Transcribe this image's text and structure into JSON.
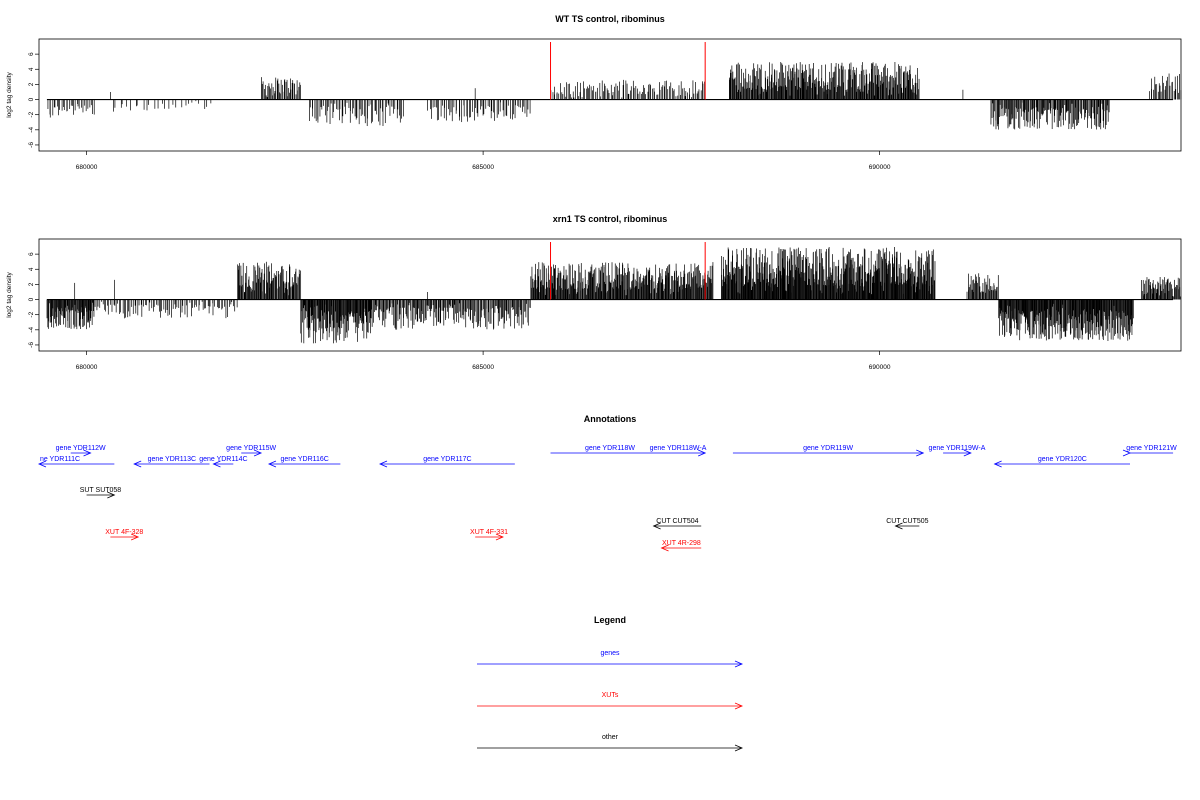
{
  "chart_data": [
    {
      "type": "bar",
      "title": "WT TS control, ribominus",
      "ylabel": "log2 tag density",
      "xlim": [
        679400,
        693800
      ],
      "ylim": [
        -6.8,
        8
      ],
      "yticks": [
        -6,
        -4,
        -2,
        0,
        2,
        4,
        6
      ],
      "xticks": [
        680000,
        685000,
        690000
      ],
      "xtick_labels": [
        "680000",
        "685000",
        "690000"
      ],
      "red_markers": [
        685850,
        687800
      ],
      "segments": [
        {
          "from": 679500,
          "to": 680100,
          "strand": "-",
          "max": 2.6,
          "density": 0.3
        },
        {
          "from": 680300,
          "to": 681600,
          "strand": "-",
          "max": 1.6,
          "density": 0.12
        },
        {
          "from": 682200,
          "to": 682700,
          "strand": "+",
          "max": 3.0,
          "density": 0.5
        },
        {
          "from": 682800,
          "to": 684000,
          "strand": "-",
          "max": 3.6,
          "density": 0.35
        },
        {
          "from": 684300,
          "to": 685600,
          "strand": "-",
          "max": 3.0,
          "density": 0.3
        },
        {
          "from": 685850,
          "to": 687800,
          "strand": "+",
          "max": 2.6,
          "density": 0.35
        },
        {
          "from": 688100,
          "to": 690500,
          "strand": "+",
          "max": 5.0,
          "density": 0.75
        },
        {
          "from": 691400,
          "to": 692900,
          "strand": "-",
          "max": 4.0,
          "density": 0.6
        },
        {
          "from": 693400,
          "to": 693800,
          "strand": "+",
          "max": 3.5,
          "density": 0.4
        }
      ],
      "spikes": [
        {
          "x": 680300,
          "y": 1.0
        },
        {
          "x": 684900,
          "y": 1.5
        },
        {
          "x": 691050,
          "y": 1.3
        }
      ]
    },
    {
      "type": "bar",
      "title": "xrn1 TS control, ribominus",
      "ylabel": "log2 tag density",
      "xlim": [
        679400,
        693800
      ],
      "ylim": [
        -6.8,
        8
      ],
      "yticks": [
        -6,
        -4,
        -2,
        0,
        2,
        4,
        6
      ],
      "xticks": [
        680000,
        685000,
        690000
      ],
      "xtick_labels": [
        "680000",
        "685000",
        "690000"
      ],
      "red_markers": [
        685850,
        687800
      ],
      "segments": [
        {
          "from": 679500,
          "to": 680100,
          "strand": "-",
          "max": 4.0,
          "density": 0.8
        },
        {
          "from": 680100,
          "to": 681900,
          "strand": "-",
          "max": 2.5,
          "density": 0.3
        },
        {
          "from": 681900,
          "to": 682700,
          "strand": "+",
          "max": 5.0,
          "density": 0.7
        },
        {
          "from": 682700,
          "to": 683600,
          "strand": "-",
          "max": 5.8,
          "density": 0.85
        },
        {
          "from": 683600,
          "to": 685600,
          "strand": "-",
          "max": 4.0,
          "density": 0.55
        },
        {
          "from": 685600,
          "to": 687900,
          "strand": "+",
          "max": 5.0,
          "density": 0.8
        },
        {
          "from": 688000,
          "to": 690700,
          "strand": "+",
          "max": 7.0,
          "density": 0.95
        },
        {
          "from": 691100,
          "to": 691500,
          "strand": "+",
          "max": 3.5,
          "density": 0.6
        },
        {
          "from": 691500,
          "to": 693200,
          "strand": "-",
          "max": 5.5,
          "density": 0.9
        },
        {
          "from": 693300,
          "to": 693800,
          "strand": "+",
          "max": 3.0,
          "density": 0.7
        }
      ],
      "spikes": [
        {
          "x": 679850,
          "y": 2.2
        },
        {
          "x": 680350,
          "y": 2.6
        },
        {
          "x": 684300,
          "y": 1.0
        }
      ]
    }
  ],
  "annotations": {
    "title": "Annotations",
    "features": [
      {
        "label": "ne YDR111C",
        "start": 679400,
        "end": 680350,
        "strand": "-",
        "row": 1,
        "color": "#0000ff"
      },
      {
        "label": "gene YDR112W",
        "start": 679800,
        "end": 680050,
        "strand": "+",
        "row": 0,
        "color": "#0000ff"
      },
      {
        "label": "gene YDR113C",
        "start": 680600,
        "end": 681550,
        "strand": "-",
        "row": 1,
        "color": "#0000ff"
      },
      {
        "label": "gene YDR114C",
        "start": 681600,
        "end": 681850,
        "strand": "-",
        "row": 1,
        "color": "#0000ff"
      },
      {
        "label": "gene YDR115W",
        "start": 681950,
        "end": 682200,
        "strand": "+",
        "row": 0,
        "color": "#0000ff"
      },
      {
        "label": "gene YDR116C",
        "start": 682300,
        "end": 683200,
        "strand": "-",
        "row": 1,
        "color": "#0000ff"
      },
      {
        "label": "gene YDR117C",
        "start": 683700,
        "end": 685400,
        "strand": "-",
        "row": 1,
        "color": "#0000ff"
      },
      {
        "label": "gene YDR118W",
        "start": 685850,
        "end": 687800,
        "strand": "+",
        "row": 0,
        "color": "#0000ff"
      },
      {
        "label": "gene YDR118W-A",
        "start": 687450,
        "end": 687800,
        "strand": "+",
        "row": 0,
        "color": "#0000ff",
        "label_only": true
      },
      {
        "label": "gene YDR119W",
        "start": 688150,
        "end": 690550,
        "strand": "+",
        "row": 0,
        "color": "#0000ff"
      },
      {
        "label": "gene YDR119W-A",
        "start": 690800,
        "end": 691150,
        "strand": "+",
        "row": 0,
        "color": "#0000ff"
      },
      {
        "label": "gene YDR120C",
        "start": 691450,
        "end": 693250,
        "strand": "-",
        "row": 1,
        "color": "#0000ff"
      },
      {
        "label": "gene YDR121W",
        "start": 693700,
        "end": 694050,
        "strand": "+",
        "row": 0,
        "color": "#0000ff"
      },
      {
        "label": "SUT SUT058",
        "start": 680000,
        "end": 680350,
        "strand": "+",
        "row": 3,
        "color": "#000000"
      },
      {
        "label": "CUT CUT504",
        "start": 687150,
        "end": 687750,
        "strand": "-",
        "row": 5,
        "color": "#000000"
      },
      {
        "label": "CUT CUT505",
        "start": 690200,
        "end": 690500,
        "strand": "-",
        "row": 5,
        "color": "#000000"
      },
      {
        "label": "XUT 4F-328",
        "start": 680300,
        "end": 680650,
        "strand": "+",
        "row": 6,
        "color": "#ff0000"
      },
      {
        "label": "XUT 4F-331",
        "start": 684900,
        "end": 685250,
        "strand": "+",
        "row": 6,
        "color": "#ff0000"
      },
      {
        "label": "XUT 4R-298",
        "start": 687250,
        "end": 687750,
        "strand": "-",
        "row": 7,
        "color": "#ff0000"
      }
    ]
  },
  "legend": {
    "title": "Legend",
    "items": [
      {
        "label": "genes",
        "color": "#0000ff"
      },
      {
        "label": "XUTs",
        "color": "#ff0000"
      },
      {
        "label": "other",
        "color": "#000000"
      }
    ]
  }
}
